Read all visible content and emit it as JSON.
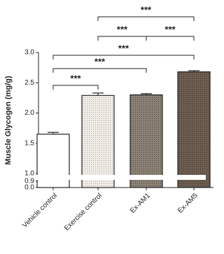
{
  "chart_data": {
    "type": "bar",
    "y_label": "Muscle Glycogen (mg/g)",
    "categories": [
      "Vehicle control",
      "Exercise control",
      "Ex-AM1",
      "Ex-AM5"
    ],
    "values": [
      1.65,
      2.29,
      2.3,
      2.68
    ],
    "errors": [
      0.03,
      0.04,
      0.02,
      0.02
    ],
    "colors": [
      "#ffffff",
      "#f1eee8",
      "#8e8377",
      "#6e5f52"
    ],
    "ylim": [
      0,
      3.0
    ],
    "axis_break": [
      0.9,
      1.0
    ],
    "yticks": [
      {
        "value": 0,
        "label": "0.0"
      },
      0.9,
      {
        "value": 1,
        "label": "1.0"
      },
      1.5,
      {
        "value": 2,
        "label": "2.0"
      },
      2.5,
      {
        "value": 3,
        "label": "3.0"
      }
    ],
    "comparisons": [
      {
        "label": "***",
        "between": [
          "Vehicle control",
          "Exercise control"
        ]
      },
      {
        "label": "***",
        "between": [
          "Vehicle control",
          "Ex-AM1"
        ]
      },
      {
        "label": "***",
        "between": [
          "Vehicle control",
          "Ex-AM5"
        ]
      },
      {
        "label": "***",
        "between": [
          "Exercise control",
          "Ex-AM1"
        ]
      },
      {
        "label": "***",
        "between": [
          "Ex-AM1",
          "Ex-AM5"
        ]
      },
      {
        "label": "***",
        "between": [
          "Exercise control",
          "Ex-AM5"
        ]
      }
    ]
  }
}
